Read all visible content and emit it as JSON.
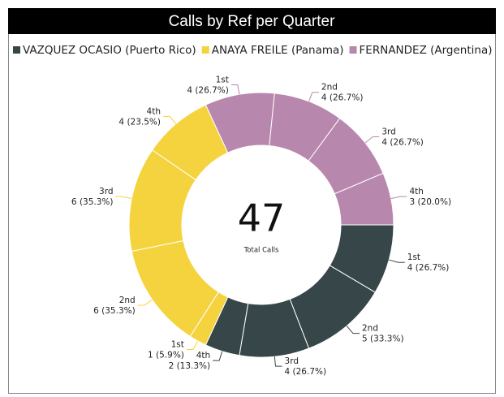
{
  "chart_data": {
    "type": "donut",
    "title": "Calls by Ref per Quarter",
    "categories": [
      "1st",
      "2nd",
      "3rd",
      "4th"
    ],
    "series": [
      {
        "name": "VAZQUEZ OCASIO (Puerto Rico)",
        "color": "#374649",
        "values": [
          4,
          5,
          4,
          2
        ],
        "value_labels": [
          "4 (26.7%)",
          "5 (33.3%)",
          "4 (26.7%)",
          "2 (13.3%)"
        ]
      },
      {
        "name": "ANAYA FREILE (Panama)",
        "color": "#f5d33f",
        "values": [
          1,
          6,
          6,
          4
        ],
        "value_labels": [
          "1 (5.9%)",
          "6 (35.3%)",
          "6 (35.3%)",
          "4 (23.5%)"
        ]
      },
      {
        "name": "FERNANDEZ (Argentina)",
        "color": "#b887ad",
        "values": [
          4,
          4,
          4,
          3
        ],
        "value_labels": [
          "4 (26.7%)",
          "4 (26.7%)",
          "4 (26.7%)",
          "3 (20.0%)"
        ]
      }
    ],
    "center_value": 47,
    "center_label": "Total Calls"
  }
}
